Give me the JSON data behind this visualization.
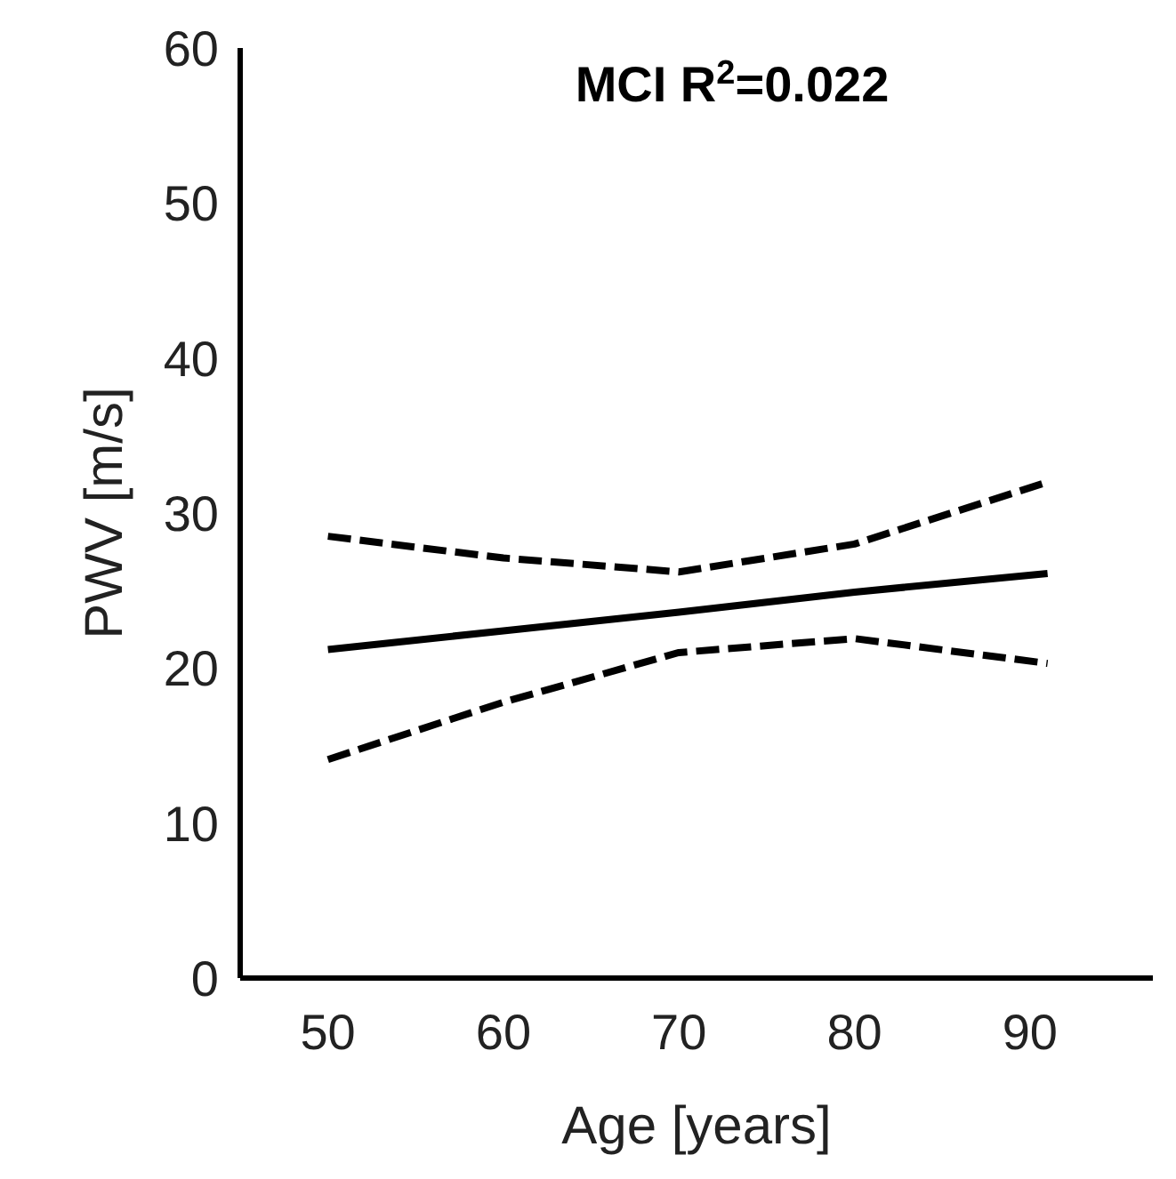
{
  "chart_data": {
    "type": "line",
    "title": "MCI R$^{2}$=0.022",
    "xlabel": "Age [years]",
    "ylabel": "PWV [m/s]",
    "xlim": [
      45,
      97
    ],
    "xticks": [
      50,
      60,
      70,
      80,
      90
    ],
    "ylim": [
      0,
      60
    ],
    "yticks": [
      0,
      10,
      20,
      30,
      40,
      50,
      60
    ],
    "marker": "none",
    "series": [
      {
        "color": "#000000",
        "line_style": "solid",
        "x": [
          50,
          60,
          70,
          80,
          91
        ],
        "values": [
          21.2,
          22.4,
          23.6,
          24.9,
          26.1
        ]
      },
      {
        "color": "#000000",
        "line_style": "dashed",
        "x": [
          50,
          60,
          70,
          80,
          91
        ],
        "values": [
          28.5,
          27.1,
          26.2,
          28.0,
          32.0
        ]
      },
      {
        "color": "#000000",
        "line_style": "dashed",
        "x": [
          50,
          60,
          70,
          80,
          91
        ],
        "values": [
          14.1,
          17.8,
          21.0,
          21.9,
          20.3
        ]
      }
    ]
  }
}
